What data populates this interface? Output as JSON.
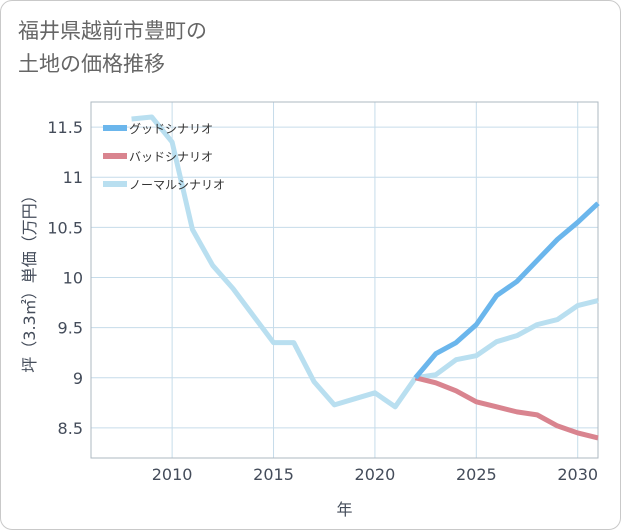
{
  "title": "福井県越前市豊町の\n土地の価格推移",
  "colors": {
    "good": "#6bb6ec",
    "bad": "#d9848f",
    "normal": "#b9dff0",
    "grid": "#c6dcea",
    "plot_border": "#aeb8c2"
  },
  "chart_data": {
    "type": "line",
    "xlabel": "年",
    "ylabel": "坪（3.3㎡）単価（万円）",
    "xlim": [
      2006,
      2031
    ],
    "ylim": [
      8.2,
      11.75
    ],
    "x_ticks": [
      2010,
      2015,
      2020,
      2025,
      2030
    ],
    "y_ticks": [
      8.5,
      9,
      9.5,
      10,
      10.5,
      11,
      11.5
    ],
    "x_tick_labels": [
      "2010",
      "2015",
      "2020",
      "2025",
      "2030"
    ],
    "y_tick_labels": [
      "8.5",
      "9",
      "9.5",
      "10",
      "10.5",
      "11",
      "11.5"
    ],
    "legend_position": "top-left",
    "series": [
      {
        "name": "グッドシナリオ",
        "key": "good",
        "x": [
          2022,
          2023,
          2024,
          2025,
          2026,
          2027,
          2028,
          2029,
          2030,
          2031
        ],
        "y": [
          9.0,
          9.24,
          9.35,
          9.53,
          9.82,
          9.96,
          10.17,
          10.38,
          10.55,
          10.74
        ]
      },
      {
        "name": "バッドシナリオ",
        "key": "bad",
        "x": [
          2022,
          2023,
          2024,
          2025,
          2026,
          2027,
          2028,
          2029,
          2030,
          2031
        ],
        "y": [
          9.0,
          8.95,
          8.87,
          8.76,
          8.71,
          8.66,
          8.63,
          8.52,
          8.45,
          8.4
        ]
      },
      {
        "name": "ノーマルシナリオ",
        "key": "normal",
        "x": [
          2008,
          2009,
          2010,
          2011,
          2012,
          2013,
          2014,
          2015,
          2016,
          2017,
          2018,
          2019,
          2020,
          2021,
          2022,
          2023,
          2024,
          2025,
          2026,
          2027,
          2028,
          2029,
          2030,
          2031
        ],
        "y": [
          11.58,
          11.6,
          11.35,
          10.48,
          10.12,
          9.89,
          9.62,
          9.35,
          9.35,
          8.96,
          8.73,
          8.79,
          8.85,
          8.71,
          9.0,
          9.03,
          9.18,
          9.22,
          9.36,
          9.42,
          9.53,
          9.58,
          9.72,
          9.77
        ]
      }
    ]
  }
}
